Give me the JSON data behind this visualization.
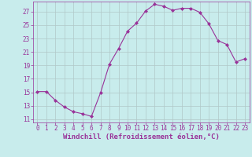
{
  "x": [
    0,
    1,
    2,
    3,
    4,
    5,
    6,
    7,
    8,
    9,
    10,
    11,
    12,
    13,
    14,
    15,
    16,
    17,
    18,
    19,
    20,
    21,
    22,
    23
  ],
  "y": [
    15.1,
    15.1,
    13.8,
    12.8,
    12.1,
    11.8,
    11.4,
    14.9,
    19.2,
    21.5,
    24.1,
    25.3,
    27.1,
    28.1,
    27.8,
    27.2,
    27.5,
    27.5,
    26.9,
    25.2,
    22.7,
    22.1,
    19.5,
    20.0
  ],
  "line_color": "#993399",
  "marker": "D",
  "marker_size": 2.0,
  "bg_color": "#c8ecec",
  "grid_color": "#b0c8c8",
  "xlabel": "Windchill (Refroidissement éolien,°C)",
  "xlim": [
    -0.5,
    23.5
  ],
  "ylim": [
    10.5,
    28.5
  ],
  "yticks": [
    11,
    13,
    15,
    17,
    19,
    21,
    23,
    25,
    27
  ],
  "xticks": [
    0,
    1,
    2,
    3,
    4,
    5,
    6,
    7,
    8,
    9,
    10,
    11,
    12,
    13,
    14,
    15,
    16,
    17,
    18,
    19,
    20,
    21,
    22,
    23
  ],
  "axis_label_fontsize": 6.5,
  "tick_fontsize": 5.5
}
